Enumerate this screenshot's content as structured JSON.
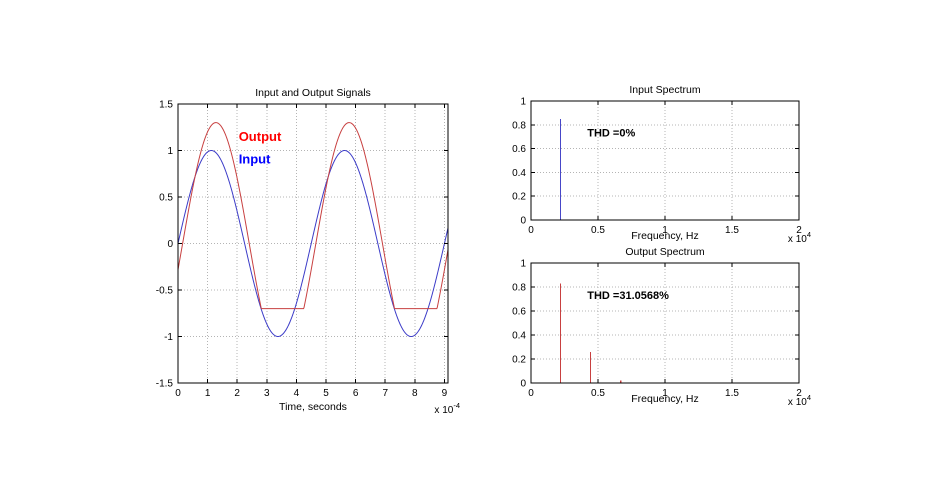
{
  "figure": {
    "background": "#ffffff",
    "frame_color": "#000000",
    "grid_color": "#b4b4b4"
  },
  "chart_data": [
    {
      "id": "signals",
      "type": "line",
      "title": "Input and Output Signals",
      "xlabel": "Time, seconds",
      "x_scale_label": {
        "prefix": "x 10",
        "exponent": "-4"
      },
      "xlim": [
        0,
        9.12
      ],
      "ylim": [
        -1.5,
        1.5
      ],
      "xticks": [
        0,
        1,
        2,
        3,
        4,
        5,
        6,
        7,
        8,
        9
      ],
      "yticks": [
        -1.5,
        -1,
        -0.5,
        0,
        0.5,
        1,
        1.5
      ],
      "grid": true,
      "series": [
        {
          "name": "Input",
          "color": "#3c3cc8",
          "waveform": {
            "kind": "sine",
            "amplitude": 1.0,
            "period": 4.5,
            "phase_rad": 0,
            "clip_min": null
          }
        },
        {
          "name": "Output",
          "color": "#c84040",
          "waveform": {
            "kind": "sine",
            "amplitude": 1.3,
            "period": 4.5,
            "phase_rad": -0.218,
            "clip_min": -0.7
          }
        }
      ],
      "annotations": [
        {
          "text": "Output",
          "x": 2.05,
          "y": 1.1,
          "color": "#ff0000",
          "size": 13,
          "bold": true
        },
        {
          "text": "Input",
          "x": 2.05,
          "y": 0.86,
          "color": "#0000ff",
          "size": 13,
          "bold": true
        }
      ]
    },
    {
      "id": "input-spectrum",
      "type": "stem",
      "title": "Input Spectrum",
      "xlabel": "Frequency, Hz",
      "x_scale_label": {
        "prefix": "x 10",
        "exponent": "4"
      },
      "xlim": [
        0,
        2
      ],
      "ylim": [
        0,
        1
      ],
      "xticks": [
        0,
        0.5,
        1,
        1.5,
        2
      ],
      "yticks": [
        0,
        0.2,
        0.4,
        0.6,
        0.8,
        1
      ],
      "grid": true,
      "color": "#4646c8",
      "baseline": 0,
      "spikes": [
        {
          "x": 0.22,
          "height": 0.85
        }
      ],
      "annotations": [
        {
          "text": "THD =0%",
          "x": 0.42,
          "y": 0.7,
          "color": "#000000",
          "size": 11,
          "bold": true
        }
      ]
    },
    {
      "id": "output-spectrum",
      "type": "stem",
      "title": "Output Spectrum",
      "xlabel": "Frequency, Hz",
      "x_scale_label": {
        "prefix": "x 10",
        "exponent": "4"
      },
      "xlim": [
        0,
        2
      ],
      "ylim": [
        0,
        1
      ],
      "xticks": [
        0,
        0.5,
        1,
        1.5,
        2
      ],
      "yticks": [
        0,
        0.2,
        0.4,
        0.6,
        0.8,
        1
      ],
      "grid": true,
      "color": "#c84040",
      "baseline": 0,
      "spikes": [
        {
          "x": 0.22,
          "height": 0.83
        },
        {
          "x": 0.445,
          "height": 0.26
        },
        {
          "x": 0.67,
          "height": 0.02
        }
      ],
      "annotations": [
        {
          "text": "THD =31.0568%",
          "x": 0.42,
          "y": 0.7,
          "color": "#000000",
          "size": 11,
          "bold": true
        }
      ]
    }
  ]
}
